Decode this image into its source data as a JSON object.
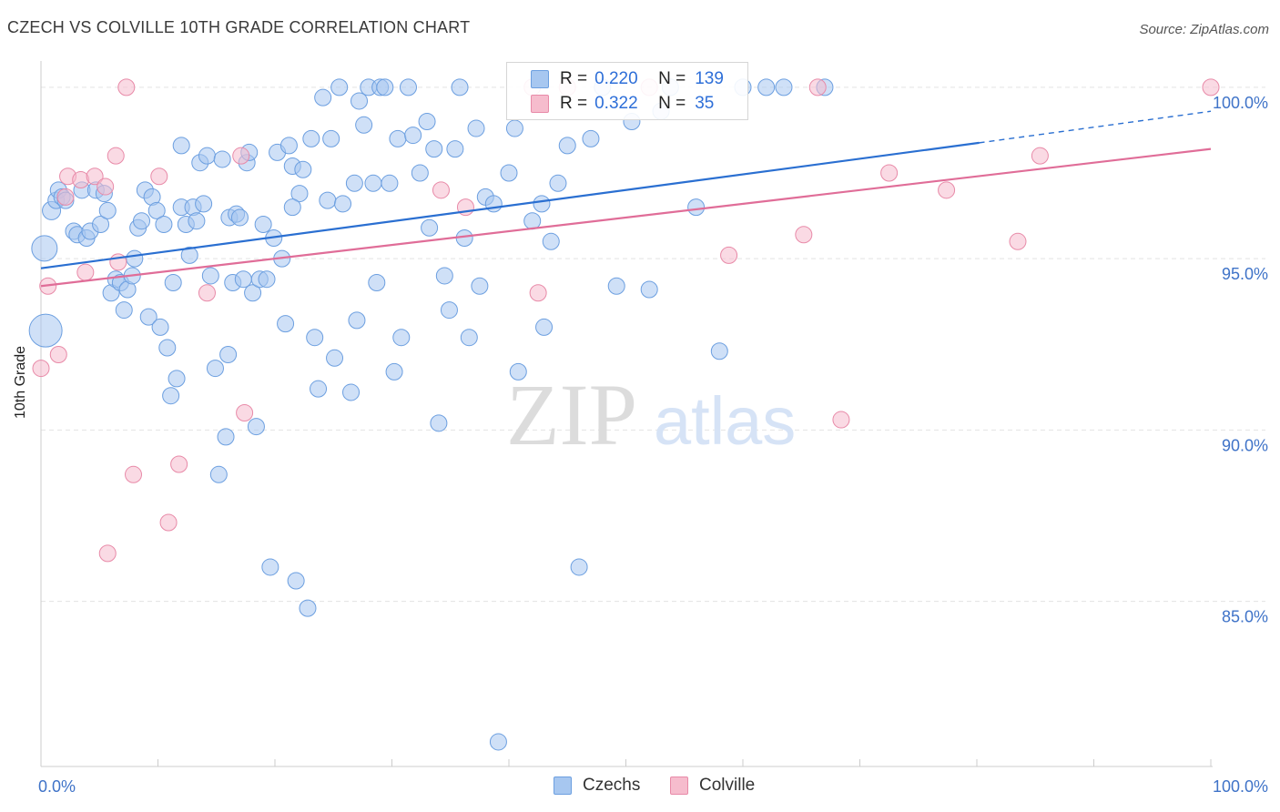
{
  "title": "CZECH VS COLVILLE 10TH GRADE CORRELATION CHART",
  "source": "Source: ZipAtlas.com",
  "watermark": {
    "zip": "ZIP",
    "atlas": "atlas"
  },
  "legend": {
    "rows": [
      {
        "r_label": "R =",
        "r_value": "0.220",
        "n_label": "N =",
        "n_value": "139",
        "color": "#a7c7f0"
      },
      {
        "r_label": "R =",
        "r_value": "0.322",
        "n_label": "N =",
        "n_value": "35",
        "color": "#f6bccd"
      }
    ]
  },
  "bottom_legend": [
    {
      "label": "Czechs",
      "color": "#a7c7f0"
    },
    {
      "label": "Colville",
      "color": "#f6bccd"
    }
  ],
  "colors": {
    "blue_fill": "#a7c7f0",
    "blue_stroke": "#6c9fe0",
    "blue_line": "#2a6fd1",
    "pink_fill": "#f6bccd",
    "pink_stroke": "#e88aa8",
    "pink_line": "#e06d98",
    "tick_label": "#3f73c8",
    "grid": "#e3e3e3",
    "axis": "#cccccc"
  },
  "chart_data": {
    "type": "scatter",
    "title": "CZECH VS COLVILLE 10TH GRADE CORRELATION CHART",
    "xlabel": "",
    "ylabel": "10th Grade",
    "xlim": [
      0,
      100
    ],
    "ylim": [
      80.5,
      100.9
    ],
    "x_tick_labels": [
      "0.0%",
      "100.0%"
    ],
    "y_ticks": [
      85,
      90,
      95,
      100
    ],
    "y_tick_labels": [
      "85.0%",
      "90.0%",
      "95.0%",
      "100.0%"
    ],
    "grid": true,
    "legend_position": "top-center",
    "series": [
      {
        "name": "Czechs",
        "r": 0.22,
        "n": 139,
        "trend": {
          "x0": 0,
          "y0": 94.72,
          "x1": 80.2,
          "y1": 98.38,
          "dashed_to_x": 100,
          "dashed_to_y": 99.3
        },
        "points": [
          [
            0.3,
            95.3,
            14
          ],
          [
            0.4,
            92.9,
            18
          ],
          [
            0.9,
            96.4,
            10
          ],
          [
            1.3,
            96.7,
            9
          ],
          [
            1.5,
            97.0,
            9
          ],
          [
            1.8,
            96.8,
            9
          ],
          [
            2.1,
            96.7,
            9
          ],
          [
            2.8,
            95.8,
            9
          ],
          [
            3.1,
            95.7,
            9
          ],
          [
            3.5,
            97.0,
            9
          ],
          [
            3.9,
            95.6,
            9
          ],
          [
            4.2,
            95.8,
            9
          ],
          [
            4.7,
            97.0,
            9
          ],
          [
            5.1,
            96.0,
            9
          ],
          [
            5.4,
            96.9,
            9
          ],
          [
            5.7,
            96.4,
            9
          ],
          [
            6.0,
            94.0,
            9
          ],
          [
            6.4,
            94.4,
            9
          ],
          [
            6.8,
            94.3,
            9
          ],
          [
            7.1,
            93.5,
            9
          ],
          [
            7.4,
            94.1,
            9
          ],
          [
            7.8,
            94.5,
            9
          ],
          [
            8.0,
            95.0,
            9
          ],
          [
            8.3,
            95.9,
            9
          ],
          [
            8.6,
            96.1,
            9
          ],
          [
            8.9,
            97.0,
            9
          ],
          [
            9.2,
            93.3,
            9
          ],
          [
            9.5,
            96.8,
            9
          ],
          [
            9.9,
            96.4,
            9
          ],
          [
            10.2,
            93.0,
            9
          ],
          [
            10.5,
            96.0,
            9
          ],
          [
            10.8,
            92.4,
            9
          ],
          [
            11.1,
            91.0,
            9
          ],
          [
            11.3,
            94.3,
            9
          ],
          [
            11.6,
            91.5,
            9
          ],
          [
            12.0,
            96.5,
            9
          ],
          [
            12.4,
            96.0,
            9
          ],
          [
            12.7,
            95.1,
            9
          ],
          [
            13.0,
            96.5,
            9
          ],
          [
            13.3,
            96.1,
            9
          ],
          [
            13.6,
            97.8,
            9
          ],
          [
            13.9,
            96.6,
            9
          ],
          [
            14.2,
            98.0,
            9
          ],
          [
            14.5,
            94.5,
            9
          ],
          [
            14.9,
            91.8,
            9
          ],
          [
            15.2,
            88.7,
            9
          ],
          [
            15.5,
            97.9,
            9
          ],
          [
            15.8,
            89.8,
            9
          ],
          [
            16.1,
            96.2,
            9
          ],
          [
            16.4,
            94.3,
            9
          ],
          [
            16.7,
            96.3,
            9
          ],
          [
            17.0,
            96.2,
            9
          ],
          [
            17.3,
            94.4,
            9
          ],
          [
            17.6,
            97.8,
            9
          ],
          [
            17.8,
            98.1,
            9
          ],
          [
            18.1,
            94.0,
            9
          ],
          [
            18.4,
            90.1,
            9
          ],
          [
            18.7,
            94.4,
            9
          ],
          [
            19.0,
            96.0,
            9
          ],
          [
            19.3,
            94.4,
            9
          ],
          [
            19.6,
            86.0,
            9
          ],
          [
            19.9,
            95.6,
            9
          ],
          [
            20.2,
            98.1,
            9
          ],
          [
            20.6,
            95.0,
            9
          ],
          [
            20.9,
            93.1,
            9
          ],
          [
            21.2,
            98.3,
            9
          ],
          [
            21.5,
            97.7,
            9
          ],
          [
            21.8,
            85.6,
            9
          ],
          [
            22.1,
            96.9,
            9
          ],
          [
            22.4,
            97.6,
            9
          ],
          [
            22.8,
            84.8,
            9
          ],
          [
            23.1,
            98.5,
            9
          ],
          [
            23.4,
            92.7,
            9
          ],
          [
            23.7,
            91.2,
            9
          ],
          [
            24.1,
            99.7,
            9
          ],
          [
            24.5,
            96.7,
            9
          ],
          [
            24.8,
            98.5,
            9
          ],
          [
            25.1,
            92.1,
            9
          ],
          [
            25.5,
            100.0,
            9
          ],
          [
            25.8,
            96.6,
            9
          ],
          [
            26.5,
            91.1,
            9
          ],
          [
            26.8,
            97.2,
            9
          ],
          [
            27.2,
            99.6,
            9
          ],
          [
            27.6,
            98.9,
            9
          ],
          [
            28.0,
            100.0,
            9
          ],
          [
            28.4,
            97.2,
            9
          ],
          [
            28.7,
            94.3,
            9
          ],
          [
            29.0,
            100.0,
            9
          ],
          [
            29.4,
            100.0,
            9
          ],
          [
            29.8,
            97.2,
            9
          ],
          [
            30.2,
            91.7,
            9
          ],
          [
            30.5,
            98.5,
            9
          ],
          [
            30.8,
            92.7,
            9
          ],
          [
            31.4,
            100.0,
            9
          ],
          [
            31.8,
            98.6,
            9
          ],
          [
            32.4,
            97.5,
            9
          ],
          [
            33.0,
            99.0,
            9
          ],
          [
            33.6,
            98.2,
            9
          ],
          [
            34.0,
            90.2,
            9
          ],
          [
            34.5,
            94.5,
            9
          ],
          [
            34.9,
            93.5,
            9
          ],
          [
            35.4,
            98.2,
            9
          ],
          [
            35.8,
            100.0,
            9
          ],
          [
            36.2,
            95.6,
            9
          ],
          [
            36.6,
            92.7,
            9
          ],
          [
            37.2,
            98.8,
            9
          ],
          [
            38.0,
            96.8,
            9
          ],
          [
            38.7,
            96.6,
            9
          ],
          [
            39.1,
            80.9,
            9
          ],
          [
            40.0,
            97.5,
            9
          ],
          [
            40.8,
            91.7,
            9
          ],
          [
            42.0,
            96.1,
            9
          ],
          [
            42.8,
            96.6,
            9
          ],
          [
            43.6,
            95.5,
            9
          ],
          [
            44.2,
            97.2,
            9
          ],
          [
            45.0,
            98.3,
            9
          ],
          [
            46.0,
            86.0,
            9
          ],
          [
            47.0,
            98.5,
            9
          ],
          [
            49.2,
            94.2,
            9
          ],
          [
            52.0,
            94.1,
            9
          ],
          [
            53.0,
            99.3,
            9
          ],
          [
            53.8,
            100.0,
            9
          ],
          [
            56.0,
            96.5,
            9
          ],
          [
            58.0,
            92.3,
            9
          ],
          [
            60.0,
            100.0,
            9
          ],
          [
            62.0,
            100.0,
            9
          ],
          [
            63.5,
            100.0,
            9
          ],
          [
            67.0,
            100.0,
            9
          ],
          [
            12.0,
            98.3,
            9
          ],
          [
            16.0,
            92.2,
            9
          ],
          [
            21.5,
            96.5,
            9
          ],
          [
            27.0,
            93.2,
            9
          ],
          [
            33.2,
            95.9,
            9
          ],
          [
            37.5,
            94.2,
            9
          ],
          [
            40.5,
            98.8,
            9
          ],
          [
            43.0,
            93.0,
            9
          ],
          [
            48.0,
            100.0,
            9
          ],
          [
            50.5,
            99.0,
            9
          ]
        ]
      },
      {
        "name": "Colville",
        "r": 0.322,
        "n": 35,
        "trend": {
          "x0": 0,
          "y0": 94.2,
          "x1": 100,
          "y1": 98.2
        },
        "points": [
          [
            0.0,
            91.8,
            9
          ],
          [
            0.6,
            94.2,
            9
          ],
          [
            1.5,
            92.2,
            9
          ],
          [
            2.1,
            96.8,
            9
          ],
          [
            2.3,
            97.4,
            9
          ],
          [
            3.4,
            97.3,
            9
          ],
          [
            3.8,
            94.6,
            9
          ],
          [
            4.6,
            97.4,
            9
          ],
          [
            5.5,
            97.1,
            9
          ],
          [
            5.7,
            86.4,
            9
          ],
          [
            6.4,
            98.0,
            9
          ],
          [
            6.6,
            94.9,
            9
          ],
          [
            7.3,
            100.0,
            9
          ],
          [
            7.9,
            88.7,
            9
          ],
          [
            10.1,
            97.4,
            9
          ],
          [
            10.9,
            87.3,
            9
          ],
          [
            11.8,
            89.0,
            9
          ],
          [
            14.2,
            94.0,
            9
          ],
          [
            17.1,
            98.0,
            9
          ],
          [
            17.4,
            90.5,
            9
          ],
          [
            34.2,
            97.0,
            9
          ],
          [
            36.3,
            96.5,
            9
          ],
          [
            42.0,
            100.0,
            9
          ],
          [
            42.5,
            94.0,
            9
          ],
          [
            58.8,
            95.1,
            9
          ],
          [
            65.2,
            95.7,
            9
          ],
          [
            66.4,
            100.0,
            9
          ],
          [
            68.4,
            90.3,
            9
          ],
          [
            72.5,
            97.5,
            9
          ],
          [
            77.4,
            97.0,
            9
          ],
          [
            83.5,
            95.5,
            9
          ],
          [
            85.4,
            98.0,
            9
          ],
          [
            100.0,
            100.0,
            9
          ],
          [
            45.0,
            100.0,
            9
          ],
          [
            52.0,
            100.0,
            9
          ]
        ]
      }
    ]
  }
}
